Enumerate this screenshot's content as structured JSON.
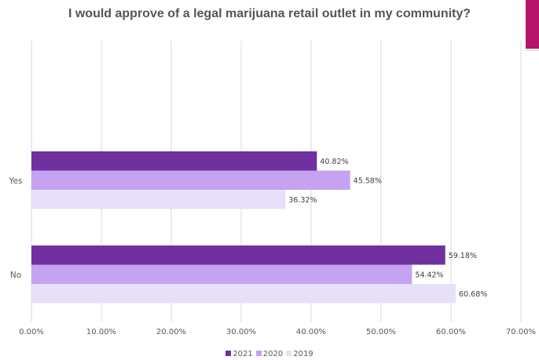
{
  "chart_data": {
    "type": "bar",
    "orientation": "horizontal",
    "title": "I would approve of a legal marijuana retail outlet in my community?",
    "categories": [
      "Yes",
      "No"
    ],
    "series": [
      {
        "name": "2021",
        "color": "#7030a0",
        "values": [
          40.82,
          59.18
        ],
        "labels": [
          "40.82%",
          "59.18%"
        ]
      },
      {
        "name": "2020",
        "color": "#c5a3f0",
        "values": [
          45.58,
          54.42
        ],
        "labels": [
          "45.58%",
          "54.42%"
        ]
      },
      {
        "name": "2019",
        "color": "#e8e0f8",
        "values": [
          36.32,
          60.68
        ],
        "labels": [
          "36.32%",
          "60.68%"
        ]
      }
    ],
    "xlim": [
      0,
      70
    ],
    "ticks": [
      "0.00%",
      "10.00%",
      "20.00%",
      "30.00%",
      "40.00%",
      "50.00%",
      "60.00%",
      "70.00%"
    ],
    "grid": true,
    "legend_position": "bottom"
  },
  "decor": {
    "accent_color": "#b5166a"
  }
}
